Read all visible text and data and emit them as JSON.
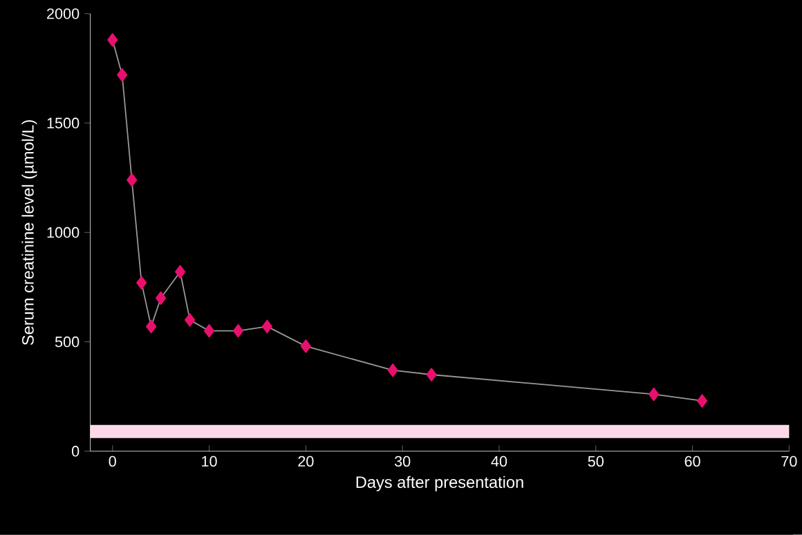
{
  "chart_data": {
    "type": "line",
    "xlabel": "Days after presentation",
    "ylabel": "Serum creatinine level (µmol/L)",
    "x": [
      0,
      1,
      2,
      3,
      4,
      5,
      7,
      8,
      10,
      13,
      16,
      20,
      29,
      33,
      56,
      61
    ],
    "series": [
      {
        "color": "#e8106e",
        "values": [
          1880,
          1720,
          1240,
          770,
          570,
          700,
          820,
          600,
          550,
          550,
          570,
          480,
          370,
          350,
          260,
          230
        ]
      }
    ],
    "marker": "diamond",
    "line_style": "solid",
    "grid": false,
    "xlim": [
      -2.3,
      70
    ],
    "ylim": [
      0,
      2000
    ],
    "xticks": [
      0,
      10,
      20,
      30,
      40,
      50,
      60,
      70
    ],
    "yticks": [
      0,
      500,
      1000,
      1500,
      2000
    ],
    "bands": [
      {
        "axis": "y",
        "from": 60,
        "to": 120,
        "color": "#fcd9ea"
      }
    ]
  }
}
